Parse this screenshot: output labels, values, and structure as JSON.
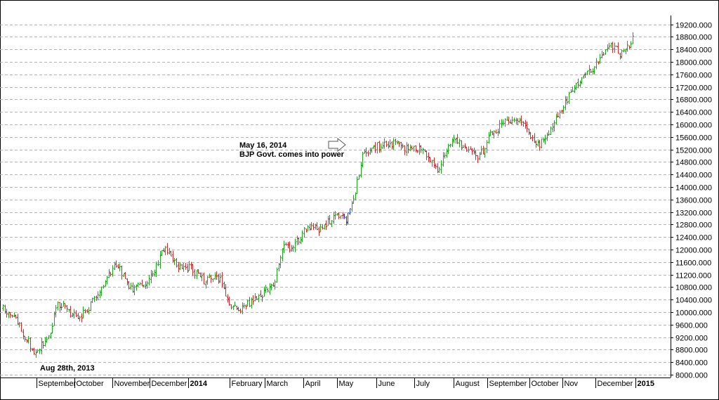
{
  "chart_data": {
    "type": "ohlc",
    "title": "",
    "xlabel": "",
    "ylabel": "",
    "ylim": [
      7850,
      19500
    ],
    "y_ticks": [
      8000,
      8400,
      8800,
      9200,
      9600,
      10000,
      10400,
      10800,
      11200,
      11600,
      12000,
      12400,
      12800,
      13200,
      13600,
      14000,
      14400,
      14800,
      15200,
      15600,
      16000,
      16400,
      16800,
      17200,
      17600,
      18000,
      18400,
      18800,
      19200
    ],
    "y_tick_labels": [
      "8000.000",
      "8400.000",
      "8800.000",
      "9200.000",
      "9600.000",
      "10000.000",
      "10400.000",
      "10800.000",
      "11200.000",
      "11600.000",
      "12000.000",
      "12400.000",
      "12800.000",
      "13200.000",
      "13600.000",
      "14000.000",
      "14400.000",
      "14800.000",
      "15200.000",
      "15600.000",
      "16000.000",
      "16400.000",
      "16800.000",
      "17200.000",
      "17600.000",
      "18000.000",
      "18400.000",
      "18800.000",
      "19200.000"
    ],
    "x_ticks": [
      {
        "label": "September",
        "bold": false
      },
      {
        "label": "October",
        "bold": false
      },
      {
        "label": "November",
        "bold": false
      },
      {
        "label": "December",
        "bold": false
      },
      {
        "label": "2014",
        "bold": true
      },
      {
        "label": "February",
        "bold": false
      },
      {
        "label": "March",
        "bold": false
      },
      {
        "label": "April",
        "bold": false
      },
      {
        "label": "May",
        "bold": false
      },
      {
        "label": "June",
        "bold": false
      },
      {
        "label": "July",
        "bold": false
      },
      {
        "label": "August",
        "bold": false
      },
      {
        "label": "September",
        "bold": false
      },
      {
        "label": "October",
        "bold": false
      },
      {
        "label": "Nov",
        "bold": false
      },
      {
        "label": "December",
        "bold": false
      },
      {
        "label": "2015",
        "bold": true
      }
    ],
    "grid": true,
    "colors": {
      "up": "#1aa81a",
      "down": "#d8262a",
      "highlight": "#1f3fd0",
      "grid": "#b4b4b4"
    },
    "key_points": [
      {
        "t": 0.0,
        "v": 10150
      },
      {
        "t": 0.02,
        "v": 9800
      },
      {
        "t": 0.05,
        "v": 8700
      },
      {
        "t": 0.075,
        "v": 9300
      },
      {
        "t": 0.085,
        "v": 10300
      },
      {
        "t": 0.1,
        "v": 10100
      },
      {
        "t": 0.12,
        "v": 9750
      },
      {
        "t": 0.145,
        "v": 10400
      },
      {
        "t": 0.18,
        "v": 11600
      },
      {
        "t": 0.205,
        "v": 10700
      },
      {
        "t": 0.235,
        "v": 11100
      },
      {
        "t": 0.255,
        "v": 12050
      },
      {
        "t": 0.275,
        "v": 11500
      },
      {
        "t": 0.3,
        "v": 11400
      },
      {
        "t": 0.32,
        "v": 11000
      },
      {
        "t": 0.345,
        "v": 11100
      },
      {
        "t": 0.36,
        "v": 10200
      },
      {
        "t": 0.38,
        "v": 10100
      },
      {
        "t": 0.41,
        "v": 10500
      },
      {
        "t": 0.43,
        "v": 10900
      },
      {
        "t": 0.445,
        "v": 12050
      },
      {
        "t": 0.46,
        "v": 12100
      },
      {
        "t": 0.485,
        "v": 12750
      },
      {
        "t": 0.505,
        "v": 12600
      },
      {
        "t": 0.525,
        "v": 13100
      },
      {
        "t": 0.545,
        "v": 12900
      },
      {
        "t": 0.556,
        "v": 13500
      },
      {
        "t": 0.562,
        "v": 14100
      },
      {
        "t": 0.572,
        "v": 15100
      },
      {
        "t": 0.595,
        "v": 15300
      },
      {
        "t": 0.62,
        "v": 15400
      },
      {
        "t": 0.645,
        "v": 15200
      },
      {
        "t": 0.665,
        "v": 15200
      },
      {
        "t": 0.69,
        "v": 14600
      },
      {
        "t": 0.715,
        "v": 15500
      },
      {
        "t": 0.74,
        "v": 15200
      },
      {
        "t": 0.755,
        "v": 14900
      },
      {
        "t": 0.775,
        "v": 15700
      },
      {
        "t": 0.8,
        "v": 16100
      },
      {
        "t": 0.825,
        "v": 16200
      },
      {
        "t": 0.845,
        "v": 15300
      },
      {
        "t": 0.865,
        "v": 15600
      },
      {
        "t": 0.885,
        "v": 16400
      },
      {
        "t": 0.905,
        "v": 17100
      },
      {
        "t": 0.925,
        "v": 17600
      },
      {
        "t": 0.945,
        "v": 18000
      },
      {
        "t": 0.965,
        "v": 18600
      },
      {
        "t": 0.98,
        "v": 18200
      },
      {
        "t": 1.0,
        "v": 18700
      }
    ]
  },
  "annotations": {
    "event_date": "May 16, 2014",
    "event_text": "BJP Govt. comes into power",
    "start_date": "Aug 28th, 2013"
  }
}
